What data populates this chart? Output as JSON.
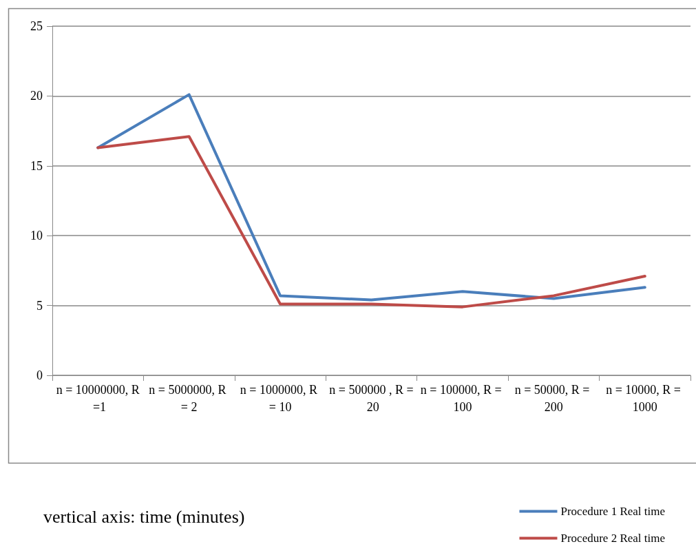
{
  "chart_data": {
    "type": "line",
    "categories": [
      "n = 10000000, R =1",
      "n = 5000000, R = 2",
      "n = 1000000, R = 10",
      "n = 500000 , R = 20",
      "n = 100000, R = 100",
      "n = 50000, R = 200",
      "n = 10000, R = 1000"
    ],
    "series": [
      {
        "name": "Procedure 1 Real time",
        "color": "#4a7ebb",
        "values": [
          16.3,
          20.1,
          5.7,
          5.4,
          6.0,
          5.5,
          6.3
        ]
      },
      {
        "name": "Procedure 2 Real time",
        "color": "#be4b48",
        "values": [
          16.3,
          17.1,
          5.1,
          5.1,
          4.9,
          5.7,
          7.1
        ]
      }
    ],
    "ylim": [
      0,
      25
    ],
    "yticks": [
      0,
      5,
      10,
      15,
      20,
      25
    ],
    "grid": "y",
    "legend": "bottom right",
    "marker": "none",
    "line_style": "solid",
    "annotations": [
      "vertical axis: time (minutes)"
    ]
  }
}
